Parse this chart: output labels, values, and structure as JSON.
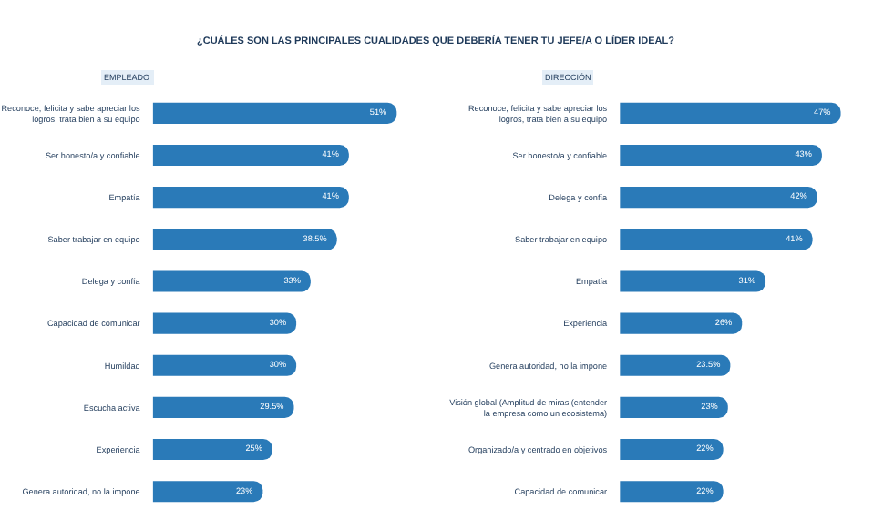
{
  "chart_data": [
    {
      "type": "bar",
      "orientation": "horizontal",
      "title": "¿CUÁLES SON LAS PRINCIPALES CUALIDADES QUE DEBERÍA TENER TU JEFE/A O LÍDER IDEAL?",
      "subtitle": "EMPLEADO",
      "categories": [
        "Reconoce, felicita y sabe apreciar los\nlogros, trata bien a su equipo",
        "Ser honesto/a y confiable",
        "Empatía",
        "Saber trabajar en equipo",
        "Delega y confía",
        "Capacidad de comunicar",
        "Humildad",
        "Escucha activa",
        "Experiencia",
        "Genera autoridad, no la impone"
      ],
      "values": [
        51,
        41,
        41,
        38.5,
        33,
        30,
        30,
        29.5,
        25,
        23
      ],
      "value_labels": [
        "51%",
        "41%",
        "41%",
        "38.5%",
        "33%",
        "30%",
        "30%",
        "29.5%",
        "25%",
        "23%"
      ],
      "color": "#2a7ab8",
      "tick_labels": "y"
    },
    {
      "type": "bar",
      "orientation": "horizontal",
      "subtitle": "DIRECCIÓN",
      "categories": [
        "Reconoce, felicita y sabe apreciar los\nlogros, trata bien a su equipo",
        "Ser honesto/a y confiable",
        "Delega y confía",
        "Saber trabajar en equipo",
        "Empatía",
        "Experiencia",
        "Genera autoridad, no la impone",
        "Visión global (Amplitud de miras (entender\nla empresa como un ecosistema)",
        "Organizado/a y centrado en objetivos",
        "Capacidad de comunicar"
      ],
      "values": [
        47,
        43,
        42,
        41,
        31,
        26,
        23.5,
        23,
        22,
        22
      ],
      "value_labels": [
        "47%",
        "43%",
        "42%",
        "41%",
        "31%",
        "26%",
        "23.5%",
        "23%",
        "22%",
        "22%"
      ],
      "color": "#2a7ab8",
      "tick_labels": "y"
    }
  ]
}
